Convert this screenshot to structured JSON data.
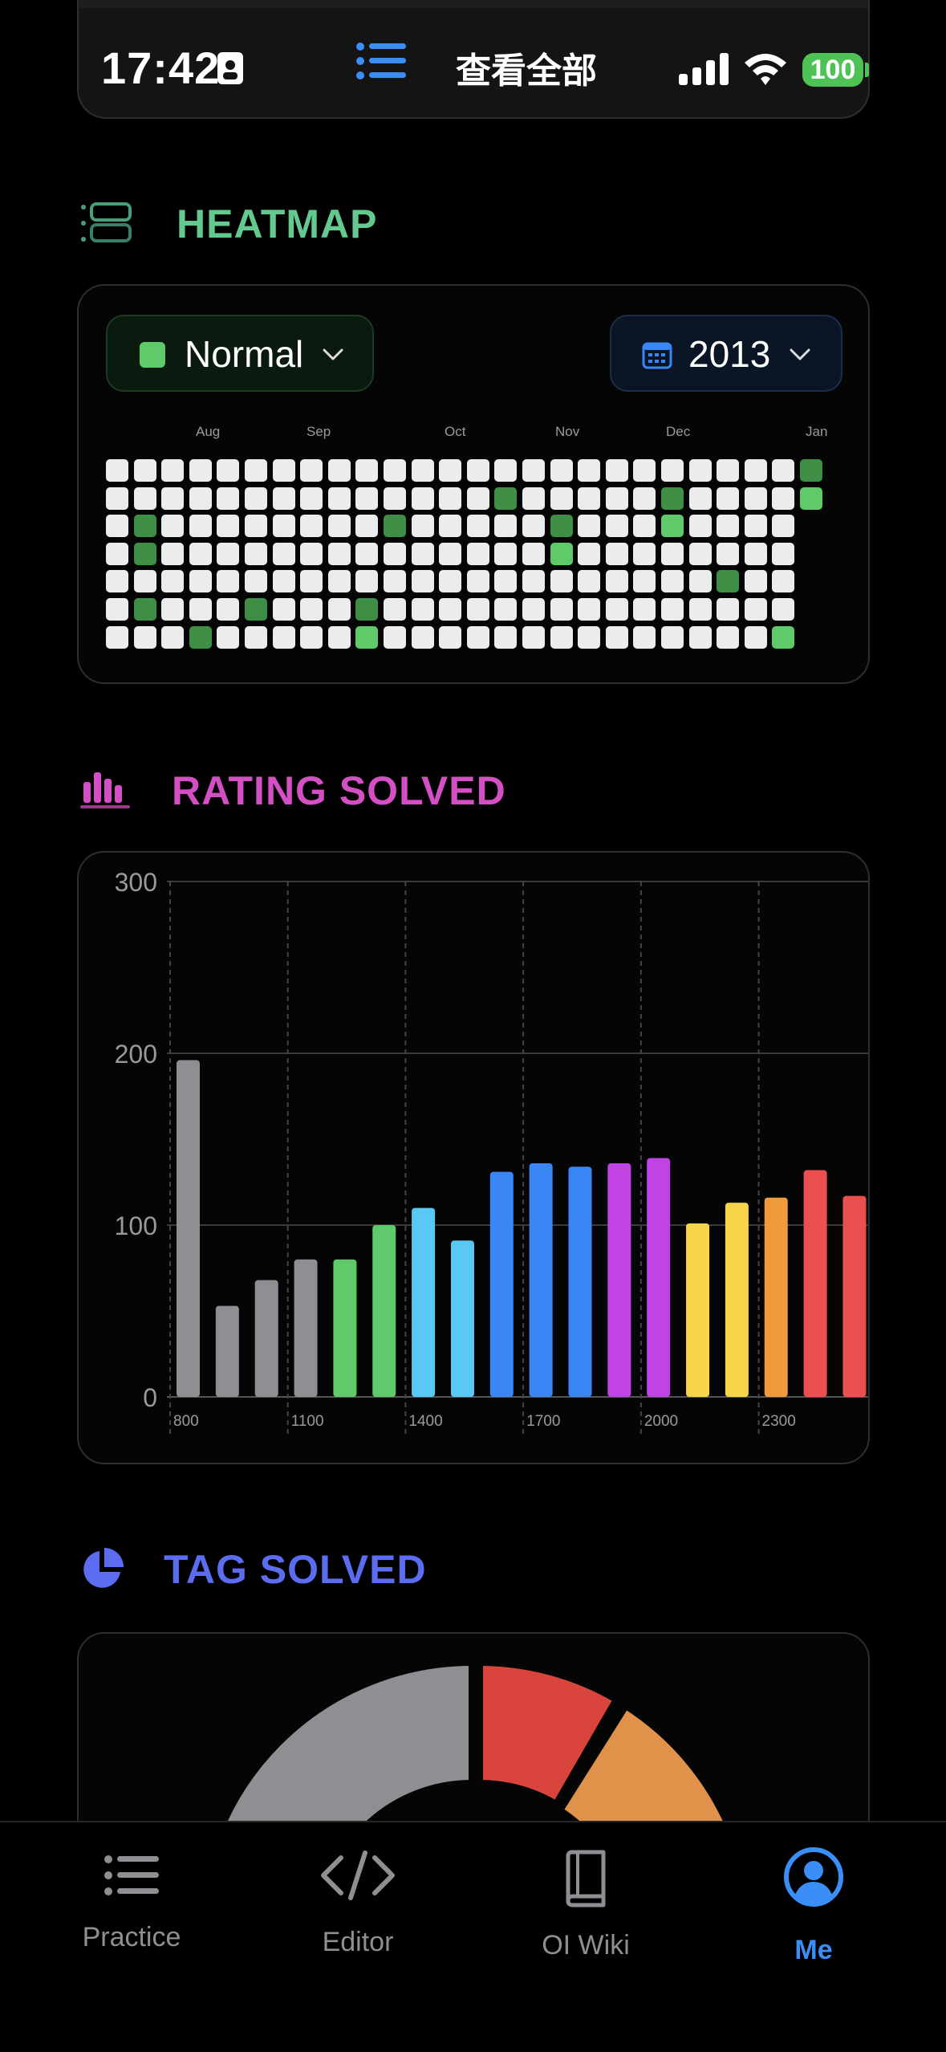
{
  "status_bar": {
    "time": "17:42",
    "title": "查看全部",
    "battery": "100",
    "icons": [
      "id-card-icon",
      "list-icon",
      "signal-icon",
      "wifi-icon",
      "battery-icon"
    ]
  },
  "heatmap": {
    "title": "HEATMAP",
    "mode_label": "Normal",
    "year_label": "2013",
    "mode_color": "#5fca6a",
    "months": [
      "Aug",
      "Sep",
      "Oct",
      "Nov",
      "Dec",
      "Jan"
    ],
    "colors": {
      "empty": "#ececee",
      "light": "#5fca6a",
      "dark": "#3e8e46"
    },
    "active_cells": [
      {
        "col": 25,
        "row": 0,
        "level": "dark"
      },
      {
        "col": 25,
        "row": 1,
        "level": "light"
      },
      {
        "col": 14,
        "row": 1,
        "level": "dark"
      },
      {
        "col": 20,
        "row": 1,
        "level": "dark"
      },
      {
        "col": 1,
        "row": 2,
        "level": "dark"
      },
      {
        "col": 10,
        "row": 2,
        "level": "dark"
      },
      {
        "col": 16,
        "row": 2,
        "level": "dark"
      },
      {
        "col": 20,
        "row": 2,
        "level": "light"
      },
      {
        "col": 1,
        "row": 3,
        "level": "dark"
      },
      {
        "col": 16,
        "row": 3,
        "level": "light"
      },
      {
        "col": 22,
        "row": 4,
        "level": "dark"
      },
      {
        "col": 1,
        "row": 5,
        "level": "dark"
      },
      {
        "col": 5,
        "row": 5,
        "level": "dark"
      },
      {
        "col": 9,
        "row": 5,
        "level": "dark"
      },
      {
        "col": 3,
        "row": 6,
        "level": "dark"
      },
      {
        "col": 9,
        "row": 6,
        "level": "light"
      },
      {
        "col": 24,
        "row": 6,
        "level": "light"
      }
    ]
  },
  "rating": {
    "title": "RATING SOLVED"
  },
  "chart_data": {
    "type": "bar",
    "title": "",
    "xlabel": "",
    "ylabel": "",
    "ylim": [
      0,
      300
    ],
    "yticks": [
      0,
      100,
      200,
      300
    ],
    "x_tick_labels": [
      "800",
      "1100",
      "1400",
      "1700",
      "2000",
      "2300"
    ],
    "categories": [
      "800",
      "900",
      "1000",
      "1100",
      "1200",
      "1300",
      "1400",
      "1500",
      "1600",
      "1700",
      "1800",
      "1900",
      "2000",
      "2100",
      "2200",
      "2300",
      "2400",
      "2500"
    ],
    "values": [
      196,
      53,
      68,
      80,
      80,
      100,
      110,
      91,
      131,
      136,
      134,
      136,
      139,
      101,
      113,
      116,
      132,
      117
    ],
    "colors": [
      "#8e8e93",
      "#8e8e93",
      "#8e8e93",
      "#8e8e93",
      "#5fca6a",
      "#5fca6a",
      "#5ac8f5",
      "#5ac8f5",
      "#3a86f5",
      "#3a86f5",
      "#3a86f5",
      "#c043e6",
      "#c043e6",
      "#f7d54a",
      "#f7d54a",
      "#ef9a3d",
      "#ec4f4f",
      "#ec4f4f"
    ],
    "grid": true
  },
  "tags": {
    "title": "TAG SOLVED",
    "slice_colors": [
      "#8e8e93",
      "#d9443c",
      "#e0914a"
    ]
  },
  "tabbar": {
    "tabs": [
      {
        "label": "Practice",
        "icon": "list-icon"
      },
      {
        "label": "Editor",
        "icon": "code-icon"
      },
      {
        "label": "OI Wiki",
        "icon": "book-icon"
      },
      {
        "label": "Me",
        "icon": "person-icon",
        "active": true
      }
    ]
  }
}
